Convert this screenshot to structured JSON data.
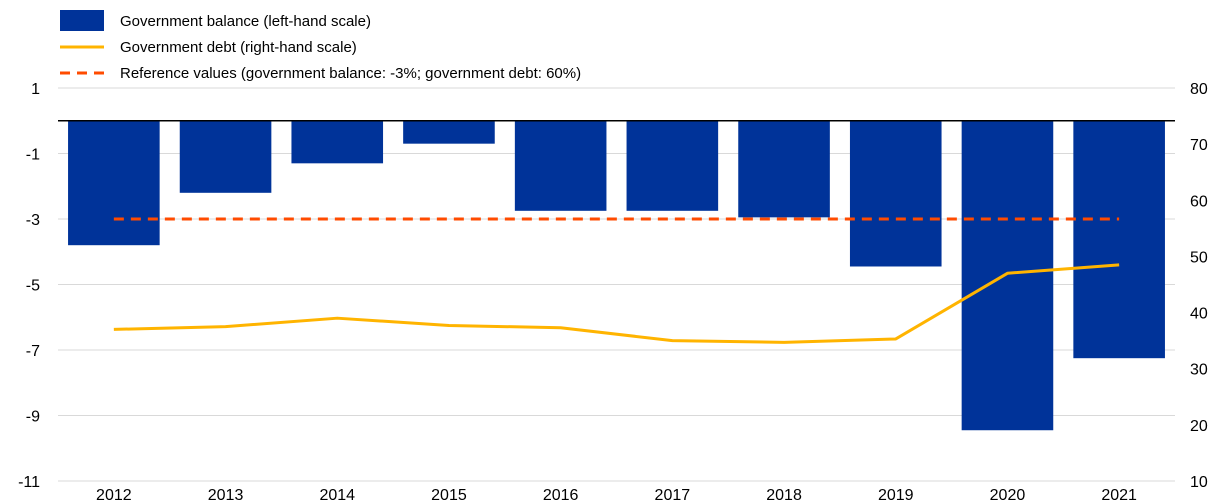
{
  "chart_data": {
    "type": "bar",
    "categories": [
      "2012",
      "2013",
      "2014",
      "2015",
      "2016",
      "2017",
      "2018",
      "2019",
      "2020",
      "2021"
    ],
    "series": [
      {
        "name": "Government balance (left-hand scale)",
        "type": "bar",
        "axis": "left",
        "color": "#003399",
        "values": [
          -3.8,
          -2.2,
          -1.3,
          -0.7,
          -2.75,
          -2.75,
          -2.95,
          -4.45,
          -9.45,
          -7.25
        ]
      },
      {
        "name": "Government debt (right-hand scale)",
        "type": "line",
        "axis": "right",
        "color": "#FFB400",
        "values": [
          37.0,
          37.5,
          39.0,
          37.7,
          37.3,
          35.0,
          34.7,
          35.3,
          47.0,
          48.5
        ]
      },
      {
        "name": "Reference values (government balance: -3%; government debt: 60%)",
        "type": "line",
        "style": "dashed",
        "color": "#FF4B00",
        "values": [
          -3,
          -3,
          -3,
          -3,
          -3,
          -3,
          -3,
          -3,
          -3,
          -3
        ]
      }
    ],
    "y_left": {
      "ylim": [
        -11,
        1
      ],
      "ticks": [
        "1",
        "-1",
        "-3",
        "-5",
        "-7",
        "-9",
        "-11"
      ],
      "tick_values": [
        1,
        -1,
        -3,
        -5,
        -7,
        -9,
        -11
      ]
    },
    "y_right": {
      "ylim": [
        10,
        80
      ],
      "ticks": [
        "80",
        "70",
        "60",
        "50",
        "40",
        "30",
        "20",
        "10"
      ],
      "tick_values": [
        80,
        70,
        60,
        50,
        40,
        30,
        20,
        10
      ]
    },
    "grid": true,
    "legend_position": "top-left"
  }
}
